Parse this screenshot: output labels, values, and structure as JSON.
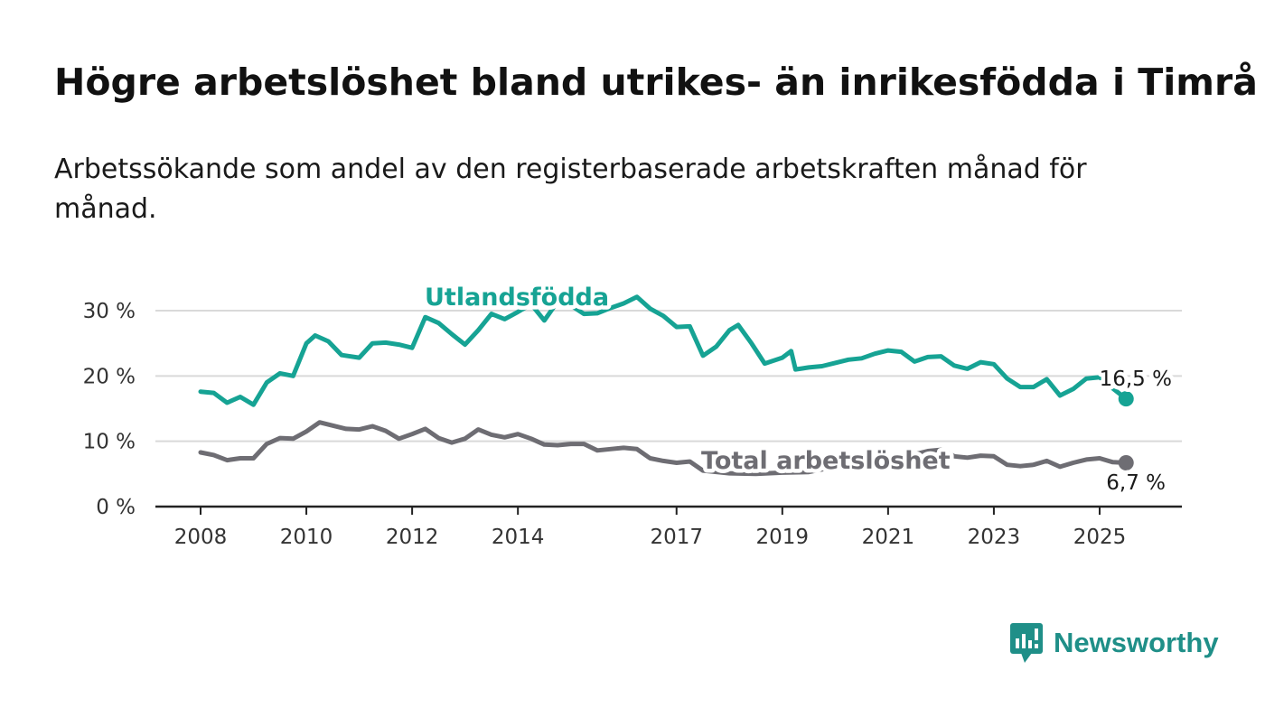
{
  "title": "Högre arbetslöshet bland utrikes- än inrikesfödda i Timrå",
  "subtitle": "Arbetssökande som andel av den registerbaserade arbetskraften månad för månad.",
  "brand": {
    "name": "Newsworthy",
    "color": "#1f8f88",
    "icon": "bar-chart-speech-bubble-icon"
  },
  "colors": {
    "utlandsfodda": "#16a394",
    "total": "#6e6d73",
    "grid": "#d9d9d9",
    "axis": "#222222"
  },
  "chart_data": {
    "type": "line",
    "title": "Högre arbetslöshet bland utrikes- än inrikesfödda i Timrå",
    "subtitle": "Arbetssökande som andel av den registerbaserade arbetskraften månad för månad.",
    "xlabel": "",
    "ylabel": "",
    "xlim": [
      "2008-01",
      "2025-09"
    ],
    "ylim": [
      0,
      30
    ],
    "x_ticks": [
      "2008",
      "2010",
      "2012",
      "2014",
      "2017",
      "2019",
      "2021",
      "2023",
      "2025"
    ],
    "y_ticks": [
      "0 %",
      "10 %",
      "20 %",
      "30 %"
    ],
    "grid": "horizontal",
    "legend": "inline labels",
    "series": [
      {
        "name": "Utlandsfödda",
        "end_label": "16,5 %",
        "points": [
          [
            "2008-01",
            17.6
          ],
          [
            "2008-04",
            17.4
          ],
          [
            "2008-07",
            15.9
          ],
          [
            "2008-10",
            16.8
          ],
          [
            "2009-01",
            15.6
          ],
          [
            "2009-04",
            19.0
          ],
          [
            "2009-07",
            20.4
          ],
          [
            "2009-10",
            20.0
          ],
          [
            "2010-01",
            25.0
          ],
          [
            "2010-03",
            26.2
          ],
          [
            "2010-06",
            25.3
          ],
          [
            "2010-09",
            23.2
          ],
          [
            "2011-01",
            22.8
          ],
          [
            "2011-04",
            25.0
          ],
          [
            "2011-07",
            25.1
          ],
          [
            "2011-10",
            24.8
          ],
          [
            "2012-01",
            24.3
          ],
          [
            "2012-04",
            29.0
          ],
          [
            "2012-07",
            28.1
          ],
          [
            "2012-10",
            26.4
          ],
          [
            "2013-01",
            24.8
          ],
          [
            "2013-04",
            27.0
          ],
          [
            "2013-07",
            29.5
          ],
          [
            "2013-10",
            28.7
          ],
          [
            "2014-01",
            29.8
          ],
          [
            "2014-04",
            31.0
          ],
          [
            "2014-07",
            28.5
          ],
          [
            "2014-10",
            31.4
          ],
          [
            "2015-01",
            30.8
          ],
          [
            "2015-04",
            29.5
          ],
          [
            "2015-07",
            29.6
          ],
          [
            "2015-10",
            30.4
          ],
          [
            "2016-01",
            31.1
          ],
          [
            "2016-04",
            32.1
          ],
          [
            "2016-07",
            30.3
          ],
          [
            "2016-10",
            29.2
          ],
          [
            "2017-01",
            27.5
          ],
          [
            "2017-04",
            27.6
          ],
          [
            "2017-07",
            23.1
          ],
          [
            "2017-10",
            24.5
          ],
          [
            "2018-01",
            27.0
          ],
          [
            "2018-03",
            27.8
          ],
          [
            "2018-06",
            25.0
          ],
          [
            "2018-09",
            21.9
          ],
          [
            "2019-01",
            22.8
          ],
          [
            "2019-03",
            23.8
          ],
          [
            "2019-04",
            21.0
          ],
          [
            "2019-07",
            21.3
          ],
          [
            "2019-10",
            21.5
          ],
          [
            "2020-01",
            22.0
          ],
          [
            "2020-04",
            22.5
          ],
          [
            "2020-07",
            22.7
          ],
          [
            "2020-10",
            23.4
          ],
          [
            "2021-01",
            23.9
          ],
          [
            "2021-04",
            23.7
          ],
          [
            "2021-07",
            22.2
          ],
          [
            "2021-10",
            22.9
          ],
          [
            "2022-01",
            23.0
          ],
          [
            "2022-04",
            21.6
          ],
          [
            "2022-07",
            21.1
          ],
          [
            "2022-10",
            22.1
          ],
          [
            "2023-01",
            21.8
          ],
          [
            "2023-04",
            19.6
          ],
          [
            "2023-07",
            18.3
          ],
          [
            "2023-10",
            18.3
          ],
          [
            "2024-01",
            19.5
          ],
          [
            "2024-04",
            17.0
          ],
          [
            "2024-07",
            18.0
          ],
          [
            "2024-10",
            19.6
          ],
          [
            "2025-01",
            19.8
          ],
          [
            "2025-04",
            18.1
          ],
          [
            "2025-07",
            16.5
          ]
        ]
      },
      {
        "name": "Total arbetslöshet",
        "end_label": "6,7 %",
        "points": [
          [
            "2008-01",
            8.3
          ],
          [
            "2008-04",
            7.9
          ],
          [
            "2008-07",
            7.1
          ],
          [
            "2008-10",
            7.4
          ],
          [
            "2009-01",
            7.4
          ],
          [
            "2009-04",
            9.6
          ],
          [
            "2009-07",
            10.5
          ],
          [
            "2009-10",
            10.4
          ],
          [
            "2010-01",
            11.5
          ],
          [
            "2010-04",
            12.9
          ],
          [
            "2010-07",
            12.4
          ],
          [
            "2010-10",
            11.9
          ],
          [
            "2011-01",
            11.8
          ],
          [
            "2011-04",
            12.3
          ],
          [
            "2011-07",
            11.6
          ],
          [
            "2011-10",
            10.4
          ],
          [
            "2012-01",
            11.1
          ],
          [
            "2012-04",
            11.9
          ],
          [
            "2012-07",
            10.5
          ],
          [
            "2012-10",
            9.8
          ],
          [
            "2013-01",
            10.4
          ],
          [
            "2013-04",
            11.8
          ],
          [
            "2013-07",
            11.0
          ],
          [
            "2013-10",
            10.6
          ],
          [
            "2014-01",
            11.1
          ],
          [
            "2014-04",
            10.4
          ],
          [
            "2014-07",
            9.5
          ],
          [
            "2014-10",
            9.4
          ],
          [
            "2015-01",
            9.6
          ],
          [
            "2015-04",
            9.6
          ],
          [
            "2015-07",
            8.6
          ],
          [
            "2015-10",
            8.8
          ],
          [
            "2016-01",
            9.0
          ],
          [
            "2016-04",
            8.8
          ],
          [
            "2016-07",
            7.4
          ],
          [
            "2016-10",
            7.0
          ],
          [
            "2017-01",
            6.7
          ],
          [
            "2017-04",
            6.9
          ],
          [
            "2017-07",
            5.5
          ],
          [
            "2017-10",
            5.3
          ],
          [
            "2018-01",
            5.1
          ],
          [
            "2018-07",
            5.0
          ],
          [
            "2019-01",
            5.2
          ],
          [
            "2019-07",
            5.3
          ],
          [
            "2020-01",
            6.1
          ],
          [
            "2020-07",
            7.0
          ],
          [
            "2021-01",
            7.6
          ],
          [
            "2021-07",
            8.0
          ],
          [
            "2021-10",
            8.5
          ],
          [
            "2022-01",
            8.7
          ],
          [
            "2022-04",
            7.7
          ],
          [
            "2022-07",
            7.5
          ],
          [
            "2022-10",
            7.8
          ],
          [
            "2023-01",
            7.7
          ],
          [
            "2023-04",
            6.4
          ],
          [
            "2023-07",
            6.2
          ],
          [
            "2023-10",
            6.4
          ],
          [
            "2024-01",
            7.0
          ],
          [
            "2024-04",
            6.1
          ],
          [
            "2024-07",
            6.7
          ],
          [
            "2024-10",
            7.2
          ],
          [
            "2025-01",
            7.4
          ],
          [
            "2025-04",
            6.8
          ],
          [
            "2025-07",
            6.7
          ]
        ]
      }
    ]
  }
}
